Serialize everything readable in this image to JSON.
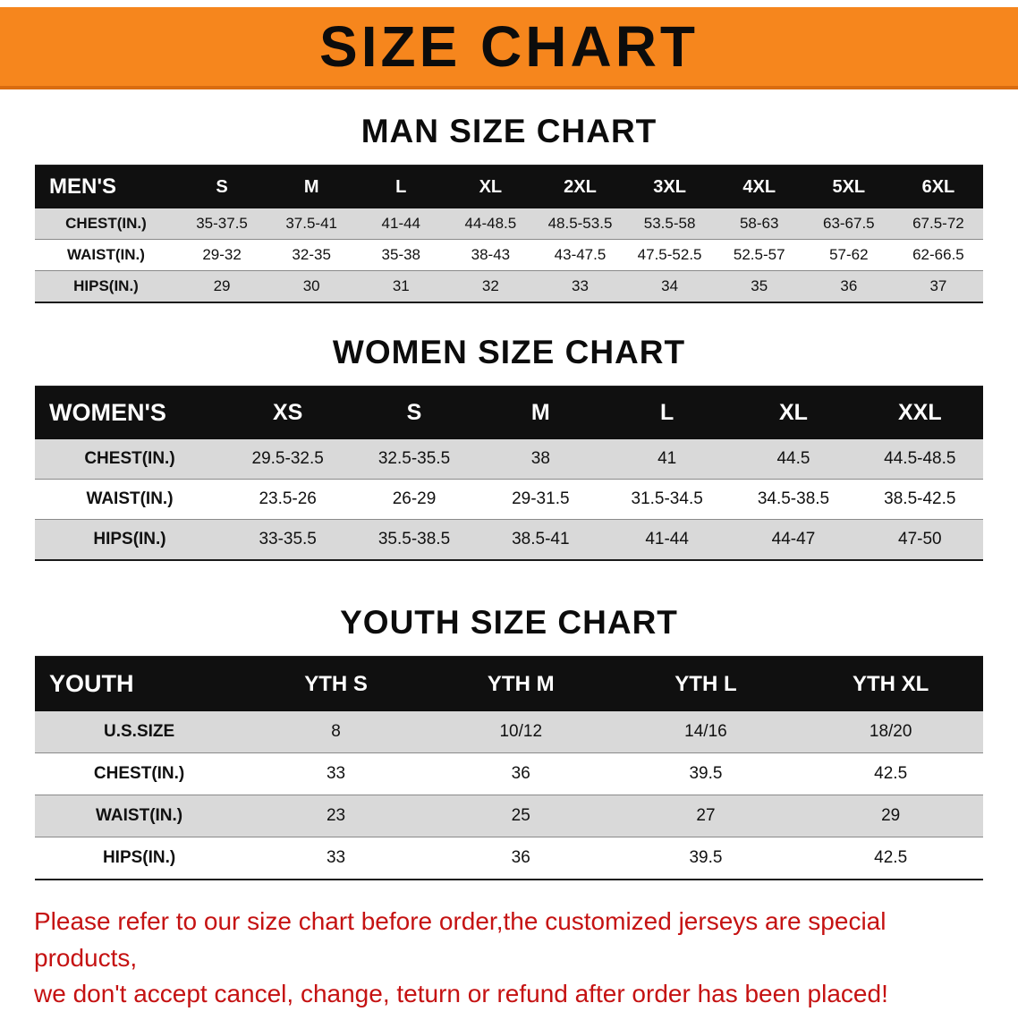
{
  "banner": {
    "title": "SIZE CHART"
  },
  "colors": {
    "banner_bg": "#f6861d",
    "table_header_bg": "#101010",
    "stripe_gray": "#d9d9d9",
    "note_red": "#c51212"
  },
  "sections": [
    {
      "heading": "MAN SIZE CHART",
      "table": {
        "header": [
          "MEN'S",
          "S",
          "M",
          "L",
          "XL",
          "2XL",
          "3XL",
          "4XL",
          "5XL",
          "6XL"
        ],
        "rows": [
          [
            "CHEST(IN.)",
            "35-37.5",
            "37.5-41",
            "41-44",
            "44-48.5",
            "48.5-53.5",
            "53.5-58",
            "58-63",
            "63-67.5",
            "67.5-72"
          ],
          [
            "WAIST(IN.)",
            "29-32",
            "32-35",
            "35-38",
            "38-43",
            "43-47.5",
            "47.5-52.5",
            "52.5-57",
            "57-62",
            "62-66.5"
          ],
          [
            "HIPS(IN.)",
            "29",
            "30",
            "31",
            "32",
            "33",
            "34",
            "35",
            "36",
            "37"
          ]
        ]
      }
    },
    {
      "heading": "WOMEN SIZE CHART",
      "table": {
        "header": [
          "WOMEN'S",
          "XS",
          "S",
          "M",
          "L",
          "XL",
          "XXL"
        ],
        "rows": [
          [
            "CHEST(IN.)",
            "29.5-32.5",
            "32.5-35.5",
            "38",
            "41",
            "44.5",
            "44.5-48.5"
          ],
          [
            "WAIST(IN.)",
            "23.5-26",
            "26-29",
            "29-31.5",
            "31.5-34.5",
            "34.5-38.5",
            "38.5-42.5"
          ],
          [
            "HIPS(IN.)",
            "33-35.5",
            "35.5-38.5",
            "38.5-41",
            "41-44",
            "44-47",
            "47-50"
          ]
        ]
      }
    },
    {
      "heading": "YOUTH SIZE CHART",
      "table": {
        "header": [
          "YOUTH",
          "YTH S",
          "YTH M",
          "YTH L",
          "YTH XL"
        ],
        "rows": [
          [
            "U.S.SIZE",
            "8",
            "10/12",
            "14/16",
            "18/20"
          ],
          [
            "CHEST(IN.)",
            "33",
            "36",
            "39.5",
            "42.5"
          ],
          [
            "WAIST(IN.)",
            "23",
            "25",
            "27",
            "29"
          ],
          [
            "HIPS(IN.)",
            "33",
            "36",
            "39.5",
            "42.5"
          ]
        ]
      }
    }
  ],
  "footer": {
    "line1": "Please refer to our size chart before order,the customized jerseys are special products,",
    "line2": "we don't accept cancel, change, teturn or refund after order has been placed!"
  }
}
